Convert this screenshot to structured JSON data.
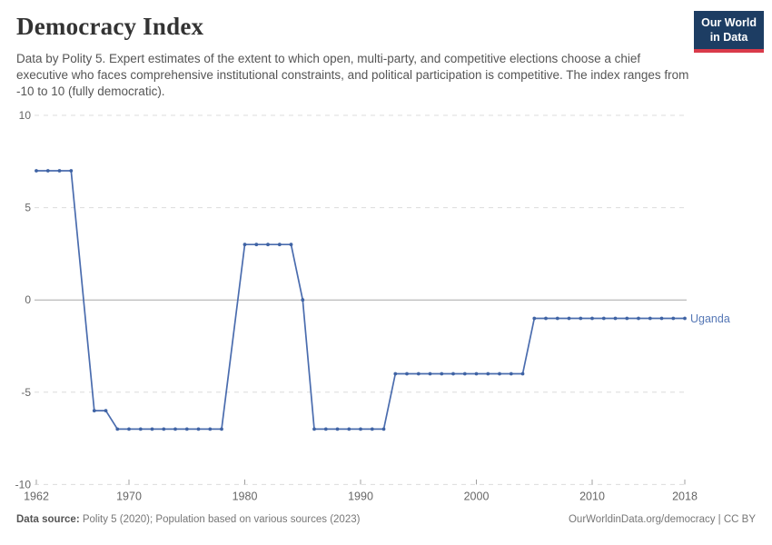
{
  "header": {
    "title": "Democracy Index",
    "logo": {
      "line1": "Our World",
      "line2": "in Data"
    },
    "subtitle": "Data by Polity 5. Expert estimates of the extent to which open, multi-party, and competitive elections choose a chief executive who faces comprehensive institutional constraints, and political participation is competitive. The index ranges from -10 to 10 (fully democratic)."
  },
  "chart_data": {
    "type": "line",
    "title": "Democracy Index",
    "xlabel": "",
    "ylabel": "",
    "ylim": [
      -10,
      10
    ],
    "yticks": [
      10,
      5,
      0,
      -5,
      -10
    ],
    "xticks": [
      1962,
      1970,
      1980,
      1990,
      2000,
      2010,
      2018
    ],
    "xrange": [
      1962,
      2018
    ],
    "grid": "horizontal-dashed",
    "zero_line": true,
    "legend_position": "end-of-line-label",
    "missing_years_interpolated": [
      1966,
      1979
    ],
    "series": [
      {
        "name": "Uganda",
        "color": "#4a6cae",
        "points": [
          [
            1962,
            7
          ],
          [
            1963,
            7
          ],
          [
            1964,
            7
          ],
          [
            1965,
            7
          ],
          [
            1967,
            -6
          ],
          [
            1968,
            -6
          ],
          [
            1969,
            -7
          ],
          [
            1970,
            -7
          ],
          [
            1971,
            -7
          ],
          [
            1972,
            -7
          ],
          [
            1973,
            -7
          ],
          [
            1974,
            -7
          ],
          [
            1975,
            -7
          ],
          [
            1976,
            -7
          ],
          [
            1977,
            -7
          ],
          [
            1978,
            -7
          ],
          [
            1980,
            3
          ],
          [
            1981,
            3
          ],
          [
            1982,
            3
          ],
          [
            1983,
            3
          ],
          [
            1984,
            3
          ],
          [
            1985,
            0
          ],
          [
            1986,
            -7
          ],
          [
            1987,
            -7
          ],
          [
            1988,
            -7
          ],
          [
            1989,
            -7
          ],
          [
            1990,
            -7
          ],
          [
            1991,
            -7
          ],
          [
            1992,
            -7
          ],
          [
            1993,
            -4
          ],
          [
            1994,
            -4
          ],
          [
            1995,
            -4
          ],
          [
            1996,
            -4
          ],
          [
            1997,
            -4
          ],
          [
            1998,
            -4
          ],
          [
            1999,
            -4
          ],
          [
            2000,
            -4
          ],
          [
            2001,
            -4
          ],
          [
            2002,
            -4
          ],
          [
            2003,
            -4
          ],
          [
            2004,
            -4
          ],
          [
            2005,
            -1
          ],
          [
            2006,
            -1
          ],
          [
            2007,
            -1
          ],
          [
            2008,
            -1
          ],
          [
            2009,
            -1
          ],
          [
            2010,
            -1
          ],
          [
            2011,
            -1
          ],
          [
            2012,
            -1
          ],
          [
            2013,
            -1
          ],
          [
            2014,
            -1
          ],
          [
            2015,
            -1
          ],
          [
            2016,
            -1
          ],
          [
            2017,
            -1
          ],
          [
            2018,
            -1
          ]
        ]
      }
    ]
  },
  "footer": {
    "source_label": "Data source:",
    "source_text": " Polity 5 (2020); Population based on various sources (2023)",
    "right_text": "OurWorldinData.org/democracy | CC BY"
  },
  "colors": {
    "line": "#4a6cae",
    "dot": "#3f63a4",
    "series_label": "#5577b5",
    "grid": "#dcdcdc",
    "zero_line": "#a8a8a8",
    "tick": "#a0a0a0",
    "axis_text": "#666666",
    "logo_bg": "#1d3d63",
    "logo_red": "#d93a4a"
  }
}
